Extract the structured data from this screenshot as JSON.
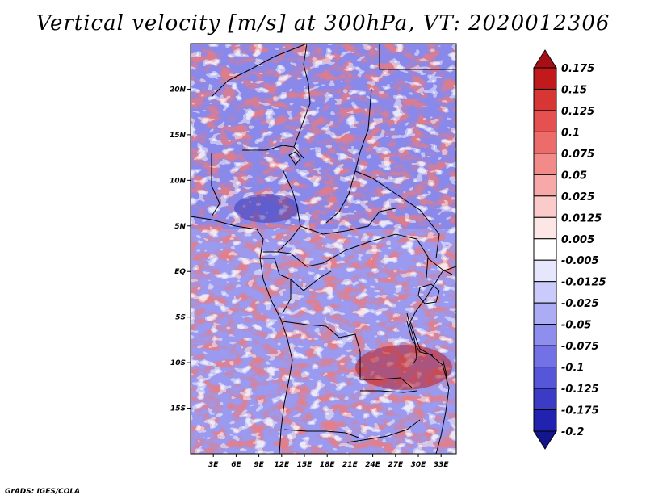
{
  "title": "Vertical velocity [m/s] at 300hPa, VT: 2020012306",
  "credit": "GrADS: IGES/COLA",
  "map": {
    "lon_range": [
      0,
      35
    ],
    "lat_range": [
      -20,
      25
    ],
    "lat_ticks": [
      {
        "lat": 20,
        "label": "20N"
      },
      {
        "lat": 15,
        "label": "15N"
      },
      {
        "lat": 10,
        "label": "10N"
      },
      {
        "lat": 5,
        "label": "5N"
      },
      {
        "lat": 0,
        "label": "EQ"
      },
      {
        "lat": -5,
        "label": "5S"
      },
      {
        "lat": -10,
        "label": "10S"
      },
      {
        "lat": -15,
        "label": "15S"
      }
    ],
    "lon_ticks": [
      {
        "lon": 3,
        "label": "3E"
      },
      {
        "lon": 6,
        "label": "6E"
      },
      {
        "lon": 9,
        "label": "9E"
      },
      {
        "lon": 12,
        "label": "12E"
      },
      {
        "lon": 15,
        "label": "15E"
      },
      {
        "lon": 18,
        "label": "18E"
      },
      {
        "lon": 21,
        "label": "21E"
      },
      {
        "lon": 24,
        "label": "24E"
      },
      {
        "lon": 27,
        "label": "27E"
      },
      {
        "lon": 30,
        "label": "30E"
      },
      {
        "lon": 33,
        "label": "33E"
      }
    ]
  },
  "colorbar": {
    "bins": [
      {
        "color": "#a50f15",
        "label": "0.175"
      },
      {
        "color": "#c21a1a",
        "label": "0.15"
      },
      {
        "color": "#d83535",
        "label": "0.125"
      },
      {
        "color": "#e55050",
        "label": "0.1"
      },
      {
        "color": "#ec6c6c",
        "label": "0.075"
      },
      {
        "color": "#f28a8a",
        "label": "0.05"
      },
      {
        "color": "#f7a9a9",
        "label": "0.025"
      },
      {
        "color": "#fbcaca",
        "label": "0.0125"
      },
      {
        "color": "#fde6e6",
        "label": "0.005"
      },
      {
        "color": "#ffffff",
        "label": "-0.005"
      },
      {
        "color": "#e6e6fd",
        "label": "-0.0125"
      },
      {
        "color": "#cacafb",
        "label": "-0.025"
      },
      {
        "color": "#acacf5",
        "label": "-0.05"
      },
      {
        "color": "#8e8eef",
        "label": "-0.075"
      },
      {
        "color": "#7272e6",
        "label": "-0.1"
      },
      {
        "color": "#5656d8",
        "label": "-0.125"
      },
      {
        "color": "#3b3bc6",
        "label": "-0.175"
      },
      {
        "color": "#2222b0",
        "label": "-0.2"
      },
      {
        "color": "#14148c",
        "label": ""
      }
    ]
  }
}
